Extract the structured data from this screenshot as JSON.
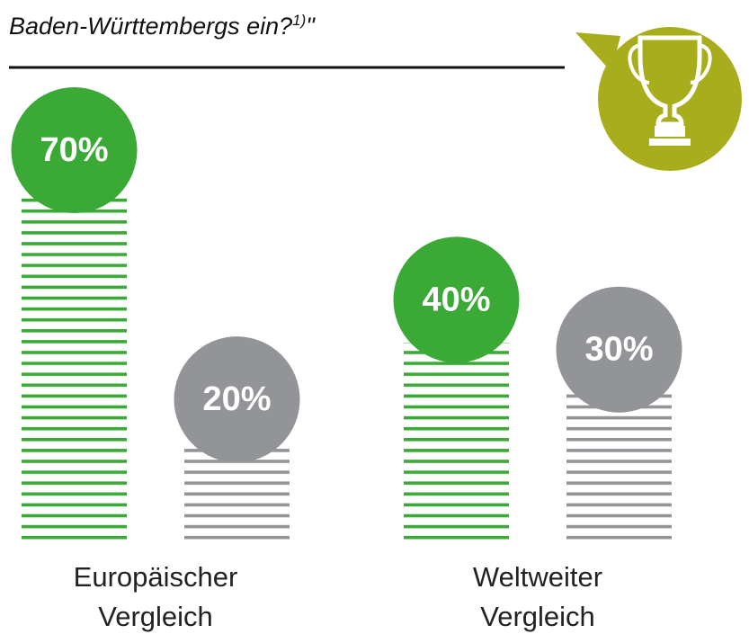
{
  "chart_data": {
    "type": "bar",
    "title_parts": [
      "Baden-Württembergs ein?",
      "1)",
      "\""
    ],
    "categories": [
      "Europäischer Vergleich",
      "Weltweiter Vergleich"
    ],
    "series": [
      {
        "color": "#3aa935",
        "values": [
          70,
          40
        ],
        "value_labels": [
          "70%",
          "40%"
        ]
      },
      {
        "color": "#929497",
        "values": [
          20,
          30
        ],
        "value_labels": [
          "20%",
          "30%"
        ]
      }
    ],
    "ylim": [
      0,
      70
    ]
  }
}
